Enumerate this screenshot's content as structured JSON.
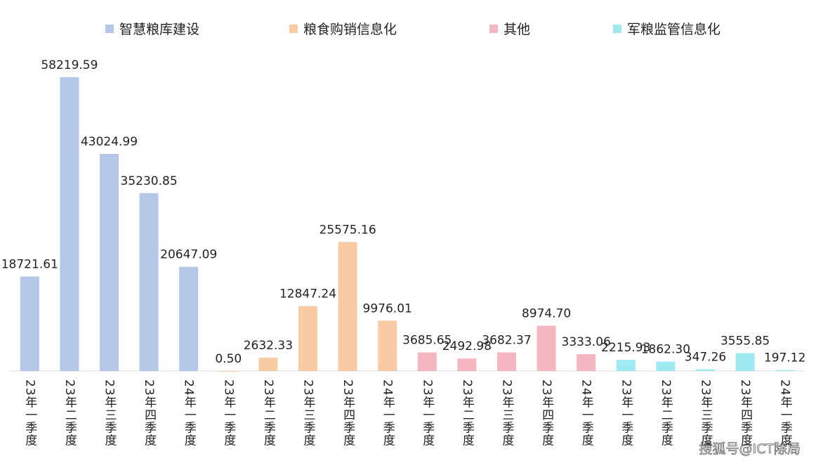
{
  "chart_data": {
    "type": "bar",
    "categories": [
      "23年一季度",
      "23年二季度",
      "23年三季度",
      "23年四季度",
      "24年一季度",
      "23年一季度",
      "23年二季度",
      "23年三季度",
      "23年四季度",
      "24年一季度",
      "23年一季度",
      "23年二季度",
      "23年三季度",
      "23年四季度",
      "24年一季度",
      "23年一季度",
      "23年二季度",
      "23年三季度",
      "23年四季度",
      "24年一季度"
    ],
    "series": [
      {
        "name": "智慧粮库建设",
        "color": "#b4c7e7",
        "values": [
          18721.61,
          58219.59,
          43024.99,
          35230.85,
          20647.09,
          null,
          null,
          null,
          null,
          null,
          null,
          null,
          null,
          null,
          null,
          null,
          null,
          null,
          null,
          null
        ],
        "value_labels": [
          "18721.61",
          "58219.59",
          "43024.99",
          "35230.85",
          "20647.09",
          null,
          null,
          null,
          null,
          null,
          null,
          null,
          null,
          null,
          null,
          null,
          null,
          null,
          null,
          null
        ]
      },
      {
        "name": "粮食购销信息化",
        "color": "#f8cba5",
        "values": [
          null,
          null,
          null,
          null,
          null,
          0.5,
          2632.33,
          12847.24,
          25575.16,
          9976.01,
          null,
          null,
          null,
          null,
          null,
          null,
          null,
          null,
          null,
          null
        ],
        "value_labels": [
          null,
          null,
          null,
          null,
          null,
          "0.50",
          "2632.33",
          "12847.24",
          "25575.16",
          "9976.01",
          null,
          null,
          null,
          null,
          null,
          null,
          null,
          null,
          null,
          null
        ]
      },
      {
        "name": "其他",
        "color": "#f4b6c0",
        "values": [
          null,
          null,
          null,
          null,
          null,
          null,
          null,
          null,
          null,
          null,
          3685.65,
          2492.98,
          3682.37,
          8974.7,
          3333.06,
          null,
          null,
          null,
          null,
          null
        ],
        "value_labels": [
          null,
          null,
          null,
          null,
          null,
          null,
          null,
          null,
          null,
          null,
          "3685.65",
          "2492.98",
          "3682.37",
          "8974.70",
          "3333.06",
          null,
          null,
          null,
          null,
          null
        ]
      },
      {
        "name": "军粮监管信息化",
        "color": "#9eeaf0",
        "values": [
          null,
          null,
          null,
          null,
          null,
          null,
          null,
          null,
          null,
          null,
          null,
          null,
          null,
          null,
          null,
          2215.93,
          1862.3,
          347.26,
          3555.85,
          197.12
        ],
        "value_labels": [
          null,
          null,
          null,
          null,
          null,
          null,
          null,
          null,
          null,
          null,
          null,
          null,
          null,
          null,
          null,
          "2215.93",
          "1862.30",
          "347.26",
          "3555.85",
          "197.12"
        ]
      }
    ],
    "ylim": [
      0,
      60000
    ],
    "grid": false,
    "legend": "top",
    "watermark": "搜狐号@ICT除局"
  }
}
